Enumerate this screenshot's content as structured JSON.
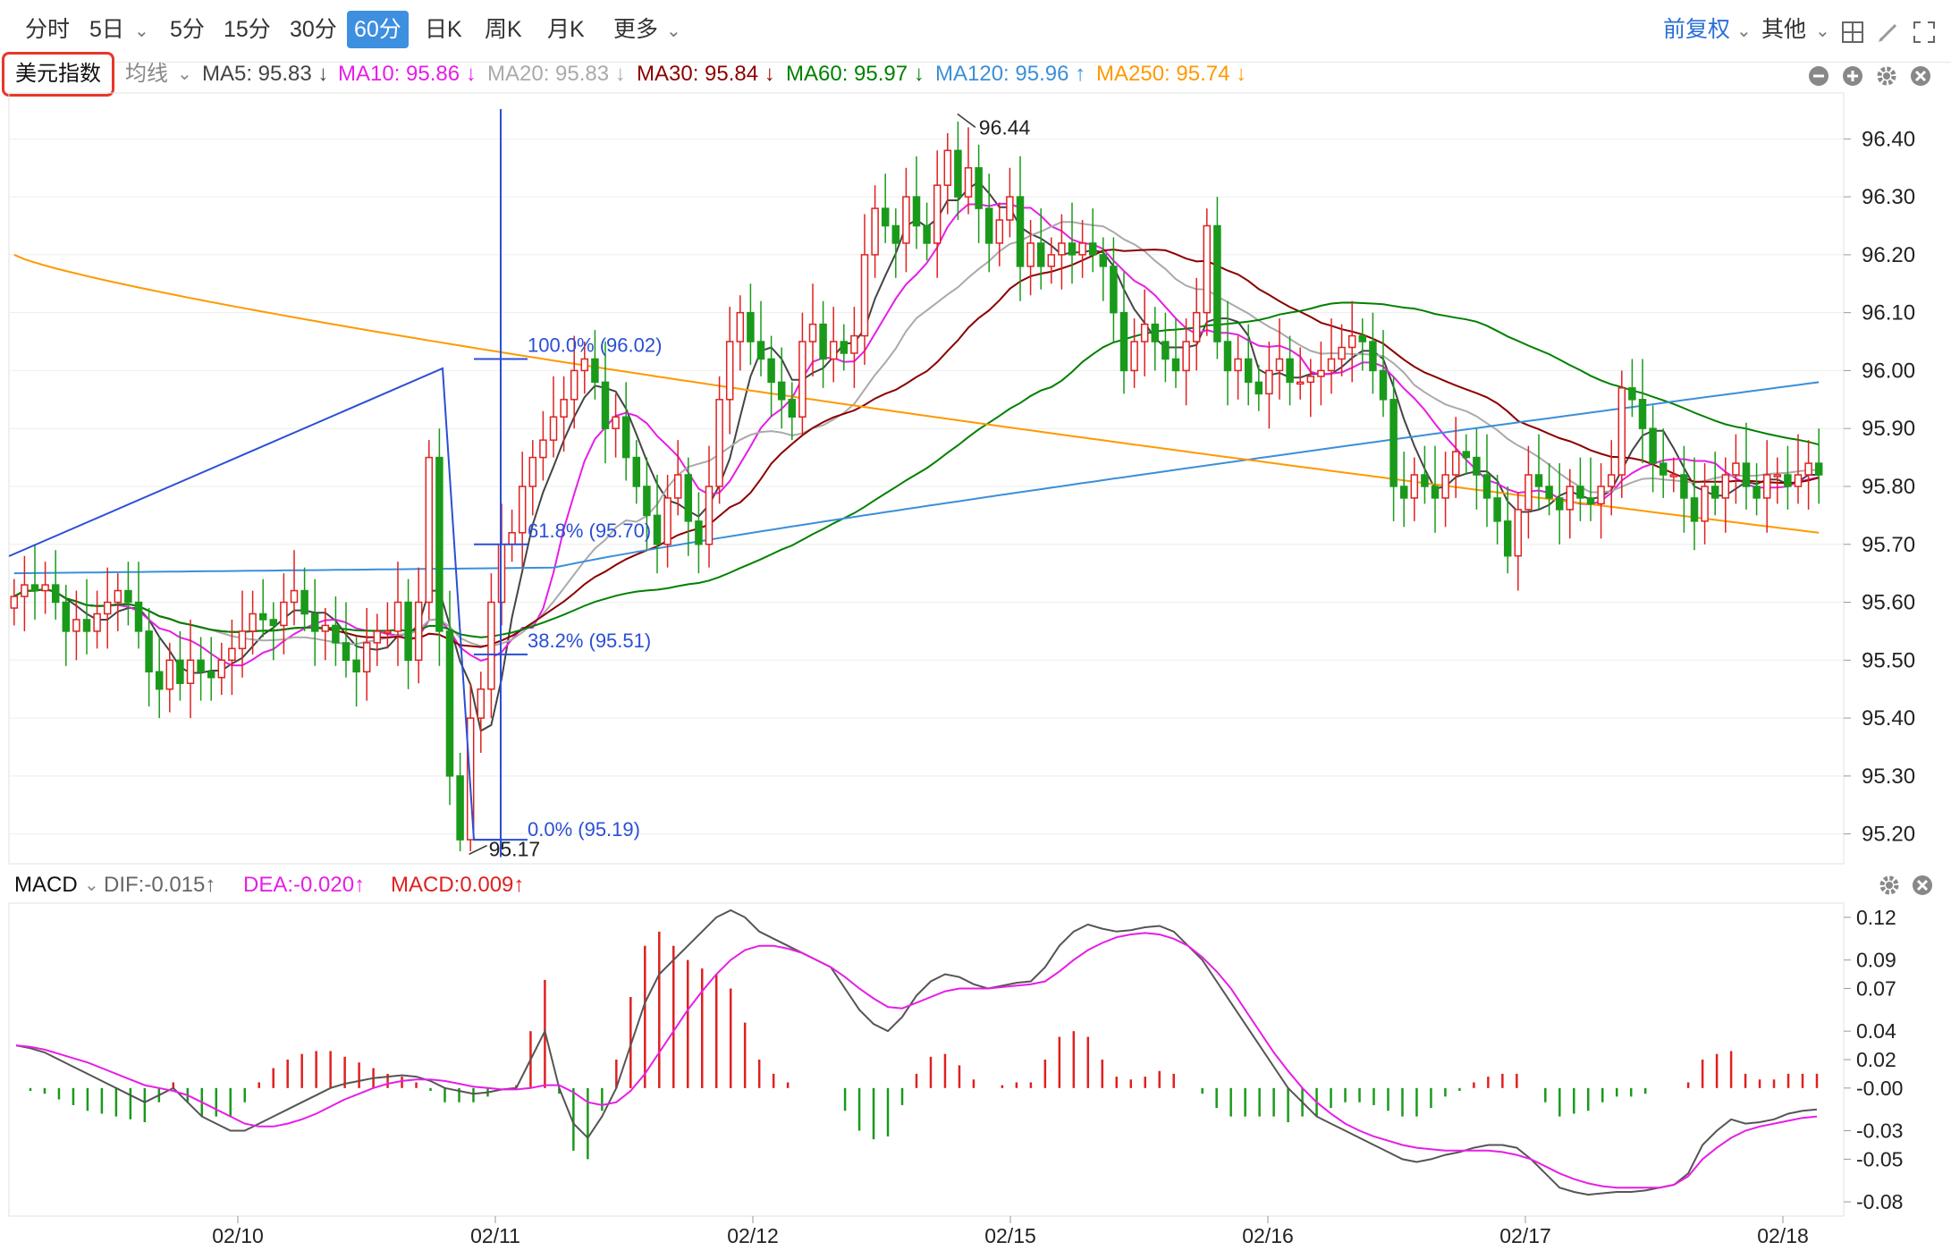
{
  "toolbar": {
    "tabs": [
      "分时",
      "5日",
      "5分",
      "15分",
      "30分",
      "60分",
      "日K",
      "周K",
      "月K",
      "更多"
    ],
    "active_tab": "60分",
    "right_fuquan": "前复权",
    "right_other": "其他"
  },
  "main_panel": {
    "symbol": "美元指数",
    "ma_selector": "均线",
    "ma_labels": [
      {
        "text": "MA5: 95.83 ↓",
        "color": "#444444"
      },
      {
        "text": "MA10: 95.86 ↓",
        "color": "#e61ee6"
      },
      {
        "text": "MA20: 95.83 ↓",
        "color": "#aaaaaa"
      },
      {
        "text": "MA30: 95.84 ↓",
        "color": "#8b0000"
      },
      {
        "text": "MA60: 95.97 ↓",
        "color": "#008000"
      },
      {
        "text": "MA120: 95.96 ↑",
        "color": "#3b8fd9"
      },
      {
        "text": "MA250: 95.74 ↓",
        "color": "#ff9900"
      }
    ],
    "high_label": "96.44",
    "low_label": "95.17",
    "fib_labels": [
      "100.0% (96.02)",
      "61.8% (95.70)",
      "38.2% (95.51)",
      "0.0% (95.19)"
    ]
  },
  "macd_panel": {
    "title": "MACD",
    "dif": "DIF:-0.015↑",
    "dea": "DEA:-0.020↑",
    "macd": "MACD:0.009↑"
  },
  "chart_data": [
    {
      "type": "candlestick",
      "title": "美元指数 60分",
      "ylim": [
        95.15,
        96.47
      ],
      "y_ticks": [
        "96.40",
        "96.30",
        "96.20",
        "96.10",
        "96.00",
        "95.90",
        "95.80",
        "95.70",
        "95.60",
        "95.50",
        "95.40",
        "95.30",
        "95.20"
      ],
      "x_ticks": [
        "02/10",
        "02/11",
        "02/12",
        "02/15",
        "02/16",
        "02/17",
        "02/18"
      ],
      "series": [
        {
          "name": "close",
          "values": [
            95.61,
            95.63,
            95.62,
            95.63,
            95.6,
            95.55,
            95.57,
            95.55,
            95.58,
            95.6,
            95.62,
            95.6,
            95.55,
            95.48,
            95.45,
            95.5,
            95.46,
            95.5,
            95.48,
            95.47,
            95.5,
            95.52,
            95.55,
            95.58,
            95.57,
            95.56,
            95.6,
            95.62,
            95.58,
            95.55,
            95.56,
            95.53,
            95.5,
            95.48,
            95.53,
            95.55,
            95.55,
            95.6,
            95.5,
            95.6,
            95.85,
            95.55,
            95.3,
            95.19,
            95.4,
            95.45,
            95.6,
            95.7,
            95.72,
            95.8,
            95.85,
            95.88,
            95.92,
            95.95,
            96.0,
            96.02,
            95.98,
            95.9,
            95.92,
            95.85,
            95.8,
            95.75,
            95.7,
            95.78,
            95.82,
            95.74,
            95.7,
            95.8,
            95.95,
            96.05,
            96.1,
            96.05,
            96.02,
            95.98,
            95.95,
            95.92,
            96.05,
            96.08,
            96.02,
            96.05,
            96.03,
            96.06,
            96.2,
            96.28,
            96.25,
            96.22,
            96.3,
            96.25,
            96.22,
            96.32,
            96.38,
            96.3,
            96.35,
            96.28,
            96.22,
            96.26,
            96.3,
            96.18,
            96.22,
            96.18,
            96.2,
            96.22,
            96.2,
            96.22,
            96.2,
            96.18,
            96.1,
            96.0,
            96.05,
            96.08,
            96.05,
            96.02,
            96.0,
            96.05,
            96.1,
            96.25,
            96.05,
            96.0,
            96.02,
            95.98,
            95.96,
            96.0,
            96.02,
            95.98,
            95.98,
            95.99,
            96.0,
            96.02,
            96.04,
            96.06,
            96.05,
            96.0,
            95.95,
            95.8,
            95.78,
            95.82,
            95.8,
            95.78,
            95.82,
            95.86,
            95.85,
            95.82,
            95.78,
            95.74,
            95.68,
            95.76,
            95.82,
            95.8,
            95.78,
            95.76,
            95.8,
            95.78,
            95.77,
            95.8,
            95.82,
            95.97,
            95.95,
            95.9,
            95.84,
            95.82,
            95.82,
            95.78,
            95.74,
            95.8,
            95.78,
            95.82,
            95.84,
            95.8,
            95.78,
            95.82,
            95.82,
            95.8,
            95.82,
            95.84,
            95.82
          ]
        },
        {
          "name": "MA250 (approx.)",
          "values_start_end": [
            96.2,
            95.72
          ]
        },
        {
          "name": "MA120 (approx.)",
          "values_start_end": [
            95.65,
            95.98
          ]
        }
      ]
    },
    {
      "type": "bar+line",
      "title": "MACD",
      "ylim": [
        -0.09,
        0.13
      ],
      "y_ticks": [
        "0.12",
        "0.09",
        "0.07",
        "0.04",
        "0.02",
        "-0.00",
        "-0.03",
        "-0.05",
        "-0.08"
      ],
      "series": [
        {
          "name": "DIF",
          "values": [
            0.03,
            0.028,
            0.025,
            0.02,
            0.015,
            0.01,
            0.005,
            0.0,
            -0.005,
            -0.01,
            -0.005,
            0.0,
            -0.01,
            -0.02,
            -0.025,
            -0.03,
            -0.03,
            -0.025,
            -0.02,
            -0.015,
            -0.01,
            -0.005,
            0.0,
            0.003,
            0.005,
            0.007,
            0.008,
            0.009,
            0.008,
            0.005,
            0.0,
            -0.002,
            -0.004,
            -0.003,
            -0.001,
            0.0,
            0.02,
            0.04,
            0.0,
            -0.025,
            -0.035,
            -0.02,
            0.0,
            0.03,
            0.06,
            0.08,
            0.09,
            0.1,
            0.11,
            0.12,
            0.125,
            0.12,
            0.11,
            0.105,
            0.1,
            0.095,
            0.09,
            0.085,
            0.07,
            0.055,
            0.045,
            0.04,
            0.05,
            0.065,
            0.075,
            0.08,
            0.078,
            0.073,
            0.07,
            0.072,
            0.074,
            0.075,
            0.085,
            0.1,
            0.11,
            0.115,
            0.112,
            0.11,
            0.111,
            0.113,
            0.114,
            0.11,
            0.1,
            0.09,
            0.075,
            0.06,
            0.045,
            0.03,
            0.015,
            0.0,
            -0.01,
            -0.02,
            -0.025,
            -0.03,
            -0.035,
            -0.04,
            -0.045,
            -0.05,
            -0.052,
            -0.05,
            -0.047,
            -0.045,
            -0.042,
            -0.04,
            -0.04,
            -0.042,
            -0.05,
            -0.06,
            -0.07,
            -0.073,
            -0.075,
            -0.074,
            -0.073,
            -0.073,
            -0.072,
            -0.07,
            -0.068,
            -0.06,
            -0.04,
            -0.03,
            -0.022,
            -0.025,
            -0.024,
            -0.022,
            -0.018,
            -0.016,
            -0.015
          ]
        },
        {
          "name": "DEA",
          "values": [
            0.03,
            0.029,
            0.027,
            0.024,
            0.021,
            0.018,
            0.014,
            0.01,
            0.006,
            0.002,
            0.0,
            -0.002,
            -0.005,
            -0.01,
            -0.015,
            -0.02,
            -0.025,
            -0.027,
            -0.027,
            -0.025,
            -0.022,
            -0.018,
            -0.013,
            -0.008,
            -0.004,
            0.0,
            0.003,
            0.005,
            0.006,
            0.006,
            0.005,
            0.003,
            0.001,
            0.0,
            -0.001,
            -0.001,
            0.0,
            0.002,
            0.002,
            -0.003,
            -0.01,
            -0.012,
            -0.01,
            -0.002,
            0.01,
            0.025,
            0.04,
            0.055,
            0.068,
            0.08,
            0.09,
            0.097,
            0.1,
            0.1,
            0.098,
            0.095,
            0.09,
            0.085,
            0.078,
            0.07,
            0.063,
            0.057,
            0.056,
            0.06,
            0.064,
            0.068,
            0.07,
            0.07,
            0.07,
            0.071,
            0.072,
            0.073,
            0.075,
            0.082,
            0.09,
            0.097,
            0.102,
            0.106,
            0.108,
            0.109,
            0.108,
            0.105,
            0.1,
            0.092,
            0.082,
            0.07,
            0.055,
            0.04,
            0.025,
            0.012,
            0.0,
            -0.01,
            -0.018,
            -0.025,
            -0.03,
            -0.034,
            -0.037,
            -0.04,
            -0.042,
            -0.043,
            -0.044,
            -0.044,
            -0.044,
            -0.044,
            -0.045,
            -0.047,
            -0.05,
            -0.055,
            -0.06,
            -0.064,
            -0.067,
            -0.069,
            -0.07,
            -0.07,
            -0.07,
            -0.07,
            -0.068,
            -0.062,
            -0.05,
            -0.042,
            -0.035,
            -0.03,
            -0.027,
            -0.025,
            -0.023,
            -0.021,
            -0.02
          ]
        }
      ]
    }
  ]
}
